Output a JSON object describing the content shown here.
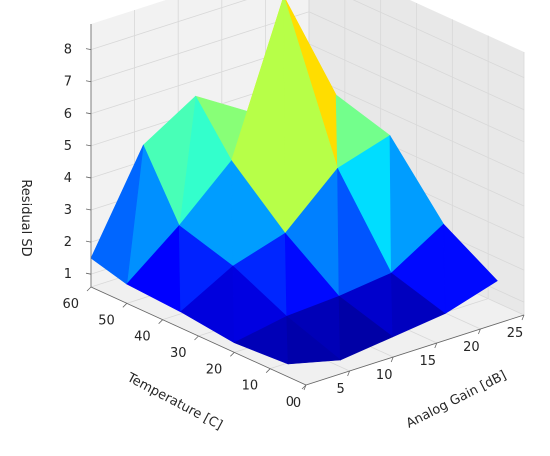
{
  "chart_data": {
    "type": "surface3d",
    "title": "",
    "xlabel": "Analog Gain [dB]",
    "ylabel": "Temperature [C]",
    "zlabel": "Residual SD",
    "xticks": [
      "0",
      "5",
      "10",
      "15",
      "20",
      "25"
    ],
    "yticks": [
      "0",
      "10",
      "20",
      "30",
      "40",
      "50",
      "60"
    ],
    "zticks": [
      "1",
      "2",
      "3",
      "4",
      "5",
      "6",
      "7",
      "8"
    ],
    "xlim": [
      0,
      25
    ],
    "ylim": [
      0,
      60
    ],
    "zlim": [
      0.6,
      8.8
    ],
    "colormap": "jet",
    "grid": true,
    "x": [
      0,
      6,
      12,
      18,
      24
    ],
    "y": [
      5,
      20,
      35,
      50,
      60
    ],
    "z": [
      [
        1.0,
        0.6,
        0.8,
        1.0,
        1.5
      ],
      [
        0.9,
        1.2,
        1.3,
        1.5,
        2.5
      ],
      [
        1.1,
        2.0,
        2.5,
        4.0,
        4.5
      ],
      [
        1.2,
        2.5,
        4.0,
        8.6,
        5.0
      ],
      [
        1.5,
        4.5,
        5.5,
        4.5,
        4.0
      ]
    ]
  }
}
